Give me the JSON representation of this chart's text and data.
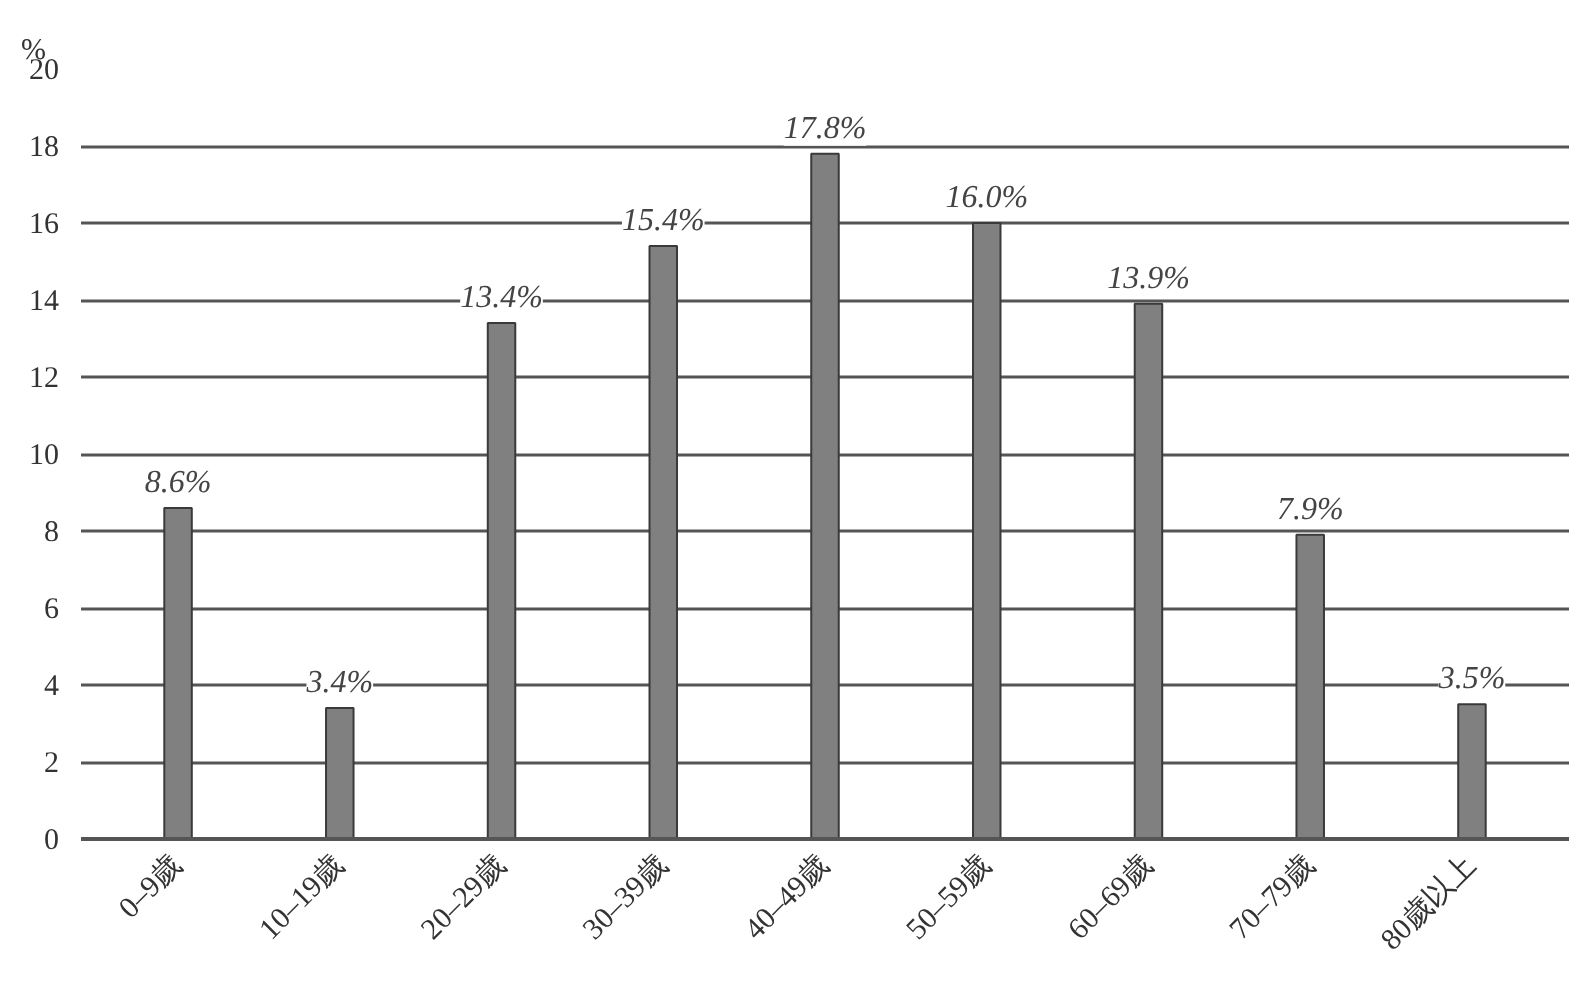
{
  "chart_data": {
    "type": "bar",
    "ylabel": "%",
    "categories": [
      "0–9歲",
      "10–19歲",
      "20–29歲",
      "30–39歲",
      "40–49歲",
      "50–59歲",
      "60–69歲",
      "70–79歲",
      "80歲以上"
    ],
    "values": [
      8.6,
      3.4,
      13.4,
      15.4,
      17.8,
      16.0,
      13.9,
      7.9,
      3.5
    ],
    "value_labels": [
      "8.6%",
      "3.4%",
      "13.4%",
      "15.4%",
      "17.8%",
      "16.0%",
      "13.9%",
      "7.9%",
      "3.5%"
    ],
    "color": "#808080",
    "ylim": [
      0,
      20
    ],
    "yticks": [
      0,
      2,
      4,
      6,
      8,
      10,
      12,
      14,
      16,
      18,
      20
    ],
    "grid": "y"
  }
}
